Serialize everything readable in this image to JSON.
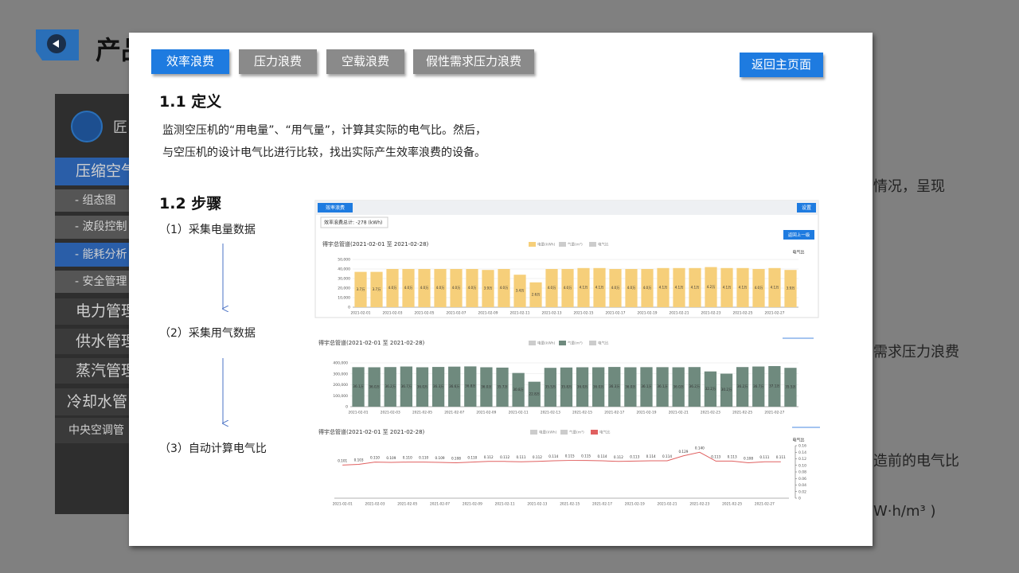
{
  "slide": {
    "title": "产品",
    "sidebar": {
      "brand": "匠",
      "items": [
        "压缩空气",
        "- 组态图",
        "- 波段控制",
        "- 能耗分析",
        "- 安全管理",
        "电力管理",
        "供水管理",
        "蒸汽管理",
        "冷却水管",
        "中央空调管"
      ]
    },
    "right_texts": [
      "情况，呈现",
      "需求压力浪费",
      "造前的电气比",
      "W·h/m³ )"
    ]
  },
  "modal": {
    "tabs": [
      "效率浪费",
      "压力浪费",
      "空载浪费",
      "假性需求压力浪费"
    ],
    "back_button": "返回主页面",
    "section1": {
      "heading": "1.1 定义",
      "lines": [
        "监测空压机的“用电量”、“用气量”，计算其实际的电气比。然后，",
        "与空压机的设计电气比进行比较，找出实际产生效率浪费的设备。"
      ]
    },
    "section2": {
      "heading": "1.2 步骤",
      "steps": [
        "（1）采集电量数据",
        "（2）采集用气数据",
        "（3）自动计算电气比"
      ]
    }
  },
  "chart_panel": {
    "tab": "效率浪费",
    "settings": "设置",
    "total": "效率浪费总计: -278 (kWh)",
    "back": "返回上一级"
  },
  "chart_data": [
    {
      "type": "bar",
      "title": "得宇总管道(2021-02-01 至 2021-02-28)",
      "y2_label": "电气比",
      "color": "#f6cf7a",
      "legend": [
        {
          "name": "电量(kWh)",
          "color": "#f6cf7a"
        },
        {
          "name": "气量(m³)",
          "color": "#cccccc"
        },
        {
          "name": "电气比",
          "color": "#cccccc"
        }
      ],
      "categories": [
        "2021-02-01",
        null,
        "2021-02-03",
        null,
        "2021-02-05",
        null,
        "2021-02-07",
        null,
        "2021-02-09",
        null,
        "2021-02-11",
        null,
        "2021-02-13",
        null,
        "2021-02-15",
        null,
        "2021-02-17",
        null,
        "2021-02-19",
        null,
        "2021-02-21",
        null,
        "2021-02-23",
        null,
        "2021-02-25",
        null,
        "2021-02-27",
        null
      ],
      "values": [
        37000,
        37000,
        40000,
        40000,
        40000,
        40000,
        40000,
        40000,
        39000,
        40000,
        34000,
        26000,
        40000,
        40000,
        41000,
        41000,
        40000,
        40000,
        40000,
        41000,
        41000,
        41000,
        42000,
        41000,
        41000,
        40000,
        41000,
        39000
      ],
      "value_labels": [
        "3.7万",
        "3.7万",
        "4.0万",
        "4.0万",
        "4.0万",
        "4.0万",
        "4.0万",
        "4.0万",
        "3.9万",
        "4.0万",
        "3.4万",
        "2.6万",
        "4.0万",
        "4.0万",
        "4.1万",
        "4.1万",
        "4.0万",
        "4.0万",
        "4.0万",
        "4.1万",
        "4.1万",
        "4.1万",
        "4.2万",
        "4.1万",
        "4.1万",
        "4.0万",
        "4.1万",
        "3.9万"
      ],
      "ylim": [
        0,
        50000
      ],
      "yticks": [
        0,
        {
          "value": 10000,
          "label": "10,000"
        },
        {
          "value": 20000,
          "label": "20,000"
        },
        {
          "value": 30000,
          "label": "30,000"
        },
        {
          "value": 40000,
          "label": "40,000"
        },
        {
          "value": 50000,
          "label": "50,000"
        }
      ],
      "grid": true
    },
    {
      "type": "bar",
      "title": "得宇总管道(2021-02-01 至 2021-02-28)",
      "color": "#6f8a7e",
      "legend": [
        {
          "name": "电量(kWh)",
          "color": "#cccccc"
        },
        {
          "name": "气量(m³)",
          "color": "#6f8a7e"
        },
        {
          "name": "电气比",
          "color": "#cccccc"
        }
      ],
      "categories": [
        "2021-02-01",
        null,
        "2021-02-03",
        null,
        "2021-02-05",
        null,
        "2021-02-07",
        null,
        "2021-02-09",
        null,
        "2021-02-11",
        null,
        "2021-02-13",
        null,
        "2021-02-15",
        null,
        "2021-02-17",
        null,
        "2021-02-19",
        null,
        "2021-02-21",
        null,
        "2021-02-23",
        null,
        "2021-02-25",
        null,
        "2021-02-27",
        null
      ],
      "values": [
        361000,
        360000,
        362000,
        367000,
        360000,
        363000,
        366000,
        368000,
        360000,
        357000,
        308000,
        228000,
        355000,
        358000,
        360000,
        360000,
        363000,
        360000,
        361000,
        361000,
        360000,
        362000,
        322000,
        302000,
        362000,
        367000,
        371000,
        355000
      ],
      "value_labels": [
        "36.1万",
        "36.0万",
        "36.2万",
        "36.7万",
        "36.0万",
        "36.3万",
        "36.6万",
        "36.8万",
        "36.0万",
        "35.7万",
        "30.8万",
        "22.8万",
        "35.5万",
        "35.8万",
        "36.0万",
        "36.0万",
        "36.3万",
        "36.0万",
        "36.1万",
        "36.1万",
        "36.0万",
        "36.2万",
        "32.2万",
        "30.2万",
        "36.2万",
        "36.7万",
        "37.1万",
        "35.5万"
      ],
      "ylim": [
        0,
        400000
      ],
      "yticks": [
        0,
        {
          "value": 100000,
          "label": "100,000"
        },
        {
          "value": 200000,
          "label": "200,000"
        },
        {
          "value": 300000,
          "label": "300,000"
        },
        {
          "value": 400000,
          "label": "400,000"
        }
      ],
      "grid": true
    },
    {
      "type": "line",
      "title": "得宇总管道(2021-02-01 至 2021-02-28)",
      "y2_label": "电气比",
      "color": "#e06060",
      "axis": "y2",
      "legend": [
        {
          "name": "电量(kWh)",
          "color": "#cccccc"
        },
        {
          "name": "气量(m³)",
          "color": "#cccccc"
        },
        {
          "name": "电气比",
          "color": "#e06060"
        }
      ],
      "categories": [
        "2021-02-01",
        null,
        "2021-02-03",
        null,
        "2021-02-05",
        null,
        "2021-02-07",
        null,
        "2021-02-09",
        null,
        "2021-02-11",
        null,
        "2021-02-13",
        null,
        "2021-02-15",
        null,
        "2021-02-17",
        null,
        "2021-02-19",
        null,
        "2021-02-21",
        null,
        "2021-02-23",
        null,
        "2021-02-25",
        null,
        "2021-02-27",
        null
      ],
      "values": [
        0.101,
        0.103,
        0.11,
        0.109,
        0.11,
        0.11,
        0.109,
        0.108,
        0.11,
        0.112,
        0.112,
        0.111,
        0.112,
        0.114,
        0.115,
        0.115,
        0.114,
        0.112,
        0.113,
        0.114,
        0.114,
        0.129,
        0.14,
        0.113,
        0.113,
        0.108,
        0.111,
        0.111
      ],
      "value_labels": [
        "0.101",
        "0.103",
        "0.110",
        "0.109",
        "0.110",
        "0.110",
        "0.109",
        "0.108",
        "0.110",
        "0.112",
        "0.112",
        "0.111",
        "0.112",
        "0.114",
        "0.115",
        "0.115",
        "0.114",
        "0.112",
        "0.113",
        "0.114",
        "0.114",
        "0.129",
        "0.140",
        "0.113",
        "0.113",
        "0.108",
        "0.111",
        "0.111"
      ],
      "y2lim": [
        0,
        0.16
      ],
      "y2ticks": [
        0,
        0.02,
        0.04,
        0.06,
        0.08,
        {
          "value": 0.1,
          "label": "0.10"
        },
        0.12,
        0.14,
        0.16
      ],
      "grid": false
    }
  ]
}
